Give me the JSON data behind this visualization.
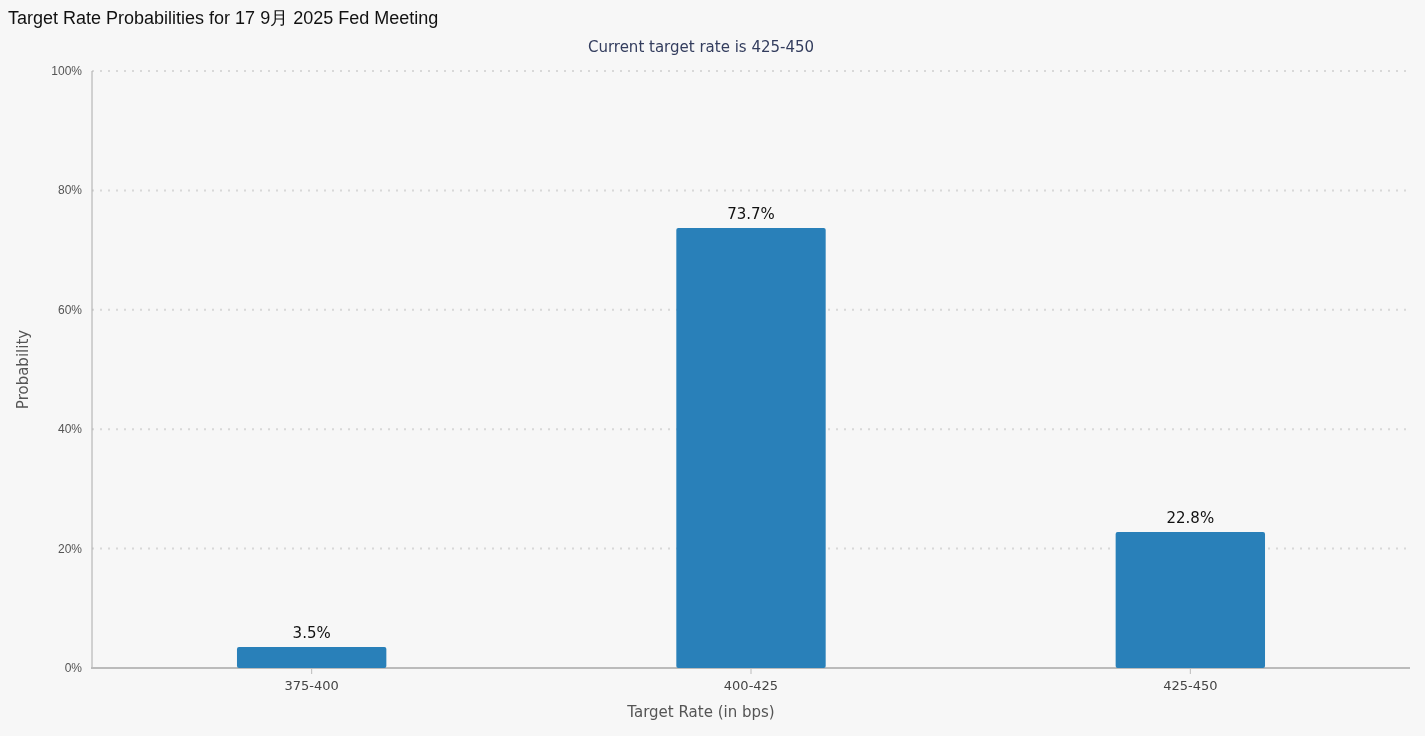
{
  "chart_data": {
    "type": "bar",
    "title": "Target Rate Probabilities for 17 9月 2025 Fed Meeting",
    "subtitle": "Current target rate is 425-450",
    "xlabel": "Target Rate (in bps)",
    "ylabel": "Probability",
    "categories": [
      "375-400",
      "400-425",
      "425-450"
    ],
    "values": [
      3.5,
      73.7,
      22.8
    ],
    "color": "#2980b9",
    "value_labels": [
      "3.5%",
      "73.7%",
      "22.8%"
    ],
    "ylim": [
      0,
      100
    ],
    "yticks": [
      {
        "value": 0,
        "label": "0%"
      },
      {
        "value": 20,
        "label": "20%"
      },
      {
        "value": 40,
        "label": "40%"
      },
      {
        "value": 60,
        "label": "60%"
      },
      {
        "value": 80,
        "label": "80%"
      },
      {
        "value": 100,
        "label": "100%"
      }
    ],
    "grid": "y"
  }
}
